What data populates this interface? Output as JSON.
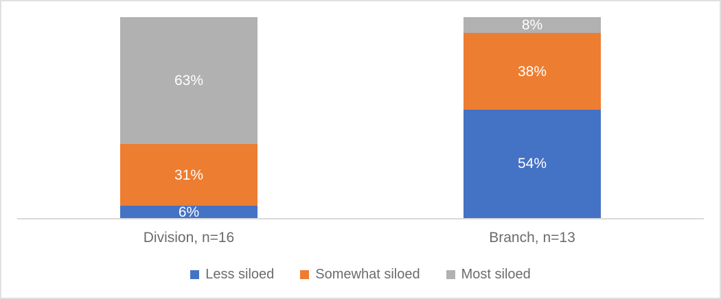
{
  "frame": {
    "background": "#FFFFFF",
    "border_color": "#E1E1E1"
  },
  "chart_data": {
    "type": "bar",
    "subtype": "100-percent-stacked-column",
    "title": "",
    "categories": [
      "Division, n=16",
      "Branch, n=13"
    ],
    "series": [
      {
        "name": "Less siloed",
        "color": "#4472C4",
        "values": [
          6,
          54
        ],
        "labels": [
          "6%",
          "54%"
        ]
      },
      {
        "name": "Somewhat siloed",
        "color": "#ED7D31",
        "values": [
          31,
          38
        ],
        "labels": [
          "31%",
          "38%"
        ]
      },
      {
        "name": "Most siloed",
        "color": "#B1B1B1",
        "values": [
          63,
          8
        ],
        "labels": [
          "63%",
          "8%"
        ]
      }
    ],
    "ylim": [
      0,
      100
    ],
    "grid": false,
    "legend_position": "bottom",
    "axis_line_color": "#D9D9D9",
    "category_label_color": "#6B6B6B",
    "data_label_color": "#FFFFFF",
    "legend_text_color": "#6B6B6B"
  }
}
